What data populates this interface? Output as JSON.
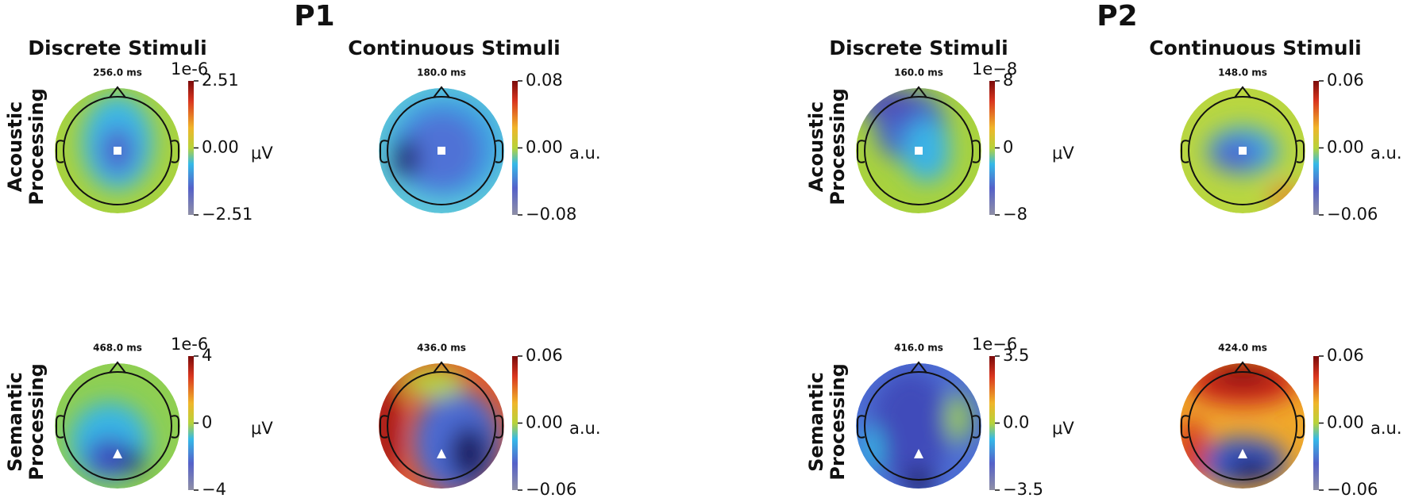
{
  "groups": [
    {
      "title": "P1",
      "columns": [
        "Discrete Stimuli",
        "Continuous Stimuli"
      ],
      "rows": [
        [
          "Acoustic",
          "Processing"
        ],
        [
          "Semantic",
          "Processing"
        ]
      ],
      "panels": [
        {
          "time": "256.0 ms",
          "exponent": "1e-6",
          "unit": "μV",
          "ticks": [
            2.51,
            {
              "value": 0,
              "label": "0.00"
            },
            {
              "value": -2.51,
              "label": "−2.51"
            }
          ]
        },
        {
          "time": "180.0 ms",
          "unit": "a.u.",
          "ticks": [
            0.08,
            {
              "value": 0,
              "label": "0.00"
            },
            {
              "value": -0.08,
              "label": "−0.08"
            }
          ]
        },
        {
          "time": "468.0 ms",
          "exponent": "1e-6",
          "unit": "μV",
          "ticks": [
            4,
            0,
            {
              "value": -4,
              "label": "−4"
            }
          ]
        },
        {
          "time": "436.0 ms",
          "unit": "a.u.",
          "ticks": [
            0.06,
            {
              "value": 0,
              "label": "0.00"
            },
            {
              "value": -0.06,
              "label": "−0.06"
            }
          ]
        }
      ]
    },
    {
      "title": "P2",
      "columns": [
        "Discrete Stimuli",
        "Continuous Stimuli"
      ],
      "rows": [
        [
          "Acoustic",
          "Processing"
        ],
        [
          "Semantic",
          "Processing"
        ]
      ],
      "panels": [
        {
          "time": "160.0 ms",
          "exponent": "1e−8",
          "unit": "μV",
          "ticks": [
            8,
            0,
            {
              "value": -8,
              "label": "−8"
            }
          ]
        },
        {
          "time": "148.0 ms",
          "unit": "a.u.",
          "ticks": [
            0.06,
            {
              "value": 0,
              "label": "0.00"
            },
            {
              "value": -0.06,
              "label": "−0.06"
            }
          ]
        },
        {
          "time": "416.0 ms",
          "exponent": "1e−6",
          "unit": "μV",
          "ticks": [
            3.5,
            {
              "value": 0,
              "label": "0.0"
            },
            {
              "value": -3.5,
              "label": "−3.5"
            }
          ]
        },
        {
          "time": "424.0 ms",
          "unit": "a.u.",
          "ticks": [
            0.06,
            {
              "value": 0,
              "label": "0.00"
            },
            {
              "value": -0.06,
              "label": "−0.06"
            }
          ]
        }
      ]
    }
  ]
}
